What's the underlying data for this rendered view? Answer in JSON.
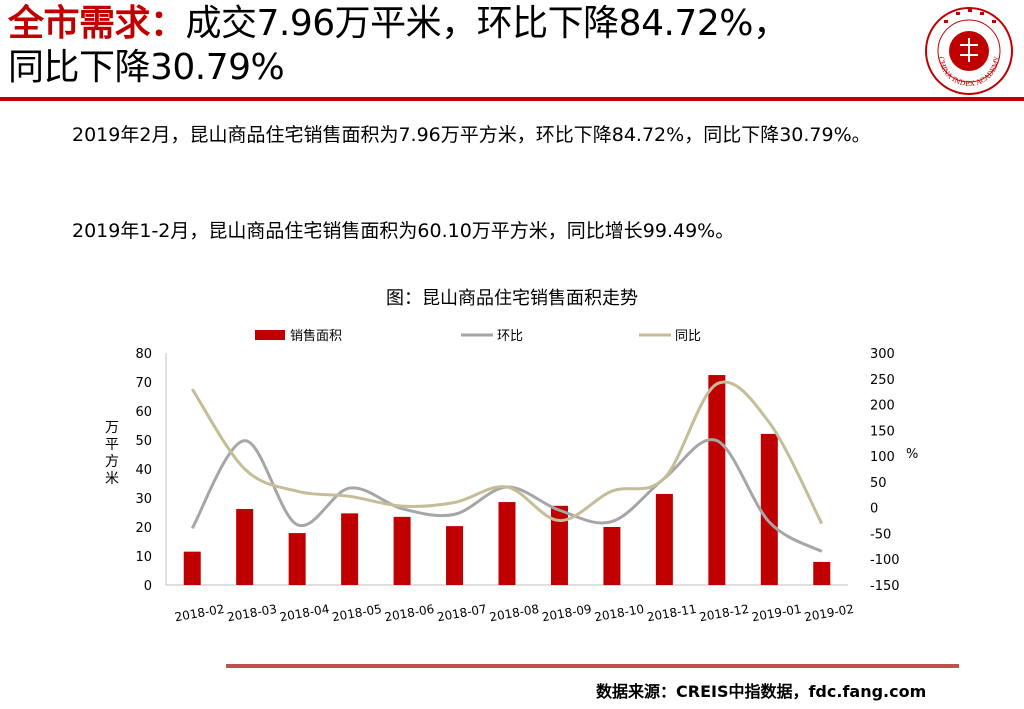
{
  "headline": {
    "red": "全市需求：",
    "rest_line1": "成交7.96万平米，环比下降84.72%，",
    "line2": "同比下降30.79%"
  },
  "logo": {
    "seal_text": "CHINA INDEX ACADEMY",
    "center_text": "中 指",
    "accent_color": "#c00000"
  },
  "paragraphs": {
    "p1": "2019年2月，昆山商品住宅销售面积为7.96万平方米，环比下降84.72%，同比下降30.79%。",
    "p2": "2019年1-2月，昆山商品住宅销售面积为60.10万平方米，同比增长99.49%。"
  },
  "chart_title": "图：昆山商品住宅销售面积走势",
  "source": "数据来源：CREIS中指数据，fdc.fang.com",
  "chart_data": {
    "type": "bar",
    "categories": [
      "2018-02",
      "2018-03",
      "2018-04",
      "2018-05",
      "2018-06",
      "2018-07",
      "2018-08",
      "2018-09",
      "2018-10",
      "2018-11",
      "2018-12",
      "2019-01",
      "2019-02"
    ],
    "ylabel_left": "万平方米",
    "ylabel_right": "%",
    "ylim_left": [
      0,
      80
    ],
    "yticks_left": [
      0,
      10,
      20,
      30,
      40,
      50,
      60,
      70,
      80
    ],
    "ylim_right": [
      -150,
      300
    ],
    "yticks_right": [
      -150,
      -100,
      -50,
      0,
      50,
      100,
      150,
      200,
      250,
      300
    ],
    "legend_position": "top",
    "series": [
      {
        "name": "销售面积",
        "kind": "bar",
        "axis": "left",
        "color": "#c00000",
        "values": [
          11.5,
          26.2,
          17.9,
          24.7,
          23.5,
          20.3,
          28.6,
          27.3,
          20.0,
          31.4,
          72.4,
          52.1,
          7.96
        ]
      },
      {
        "name": "环比",
        "kind": "line",
        "axis": "right",
        "color": "#a6a6a6",
        "values": [
          -40,
          130,
          -33,
          38,
          -2,
          -13,
          40,
          -5,
          -27,
          57,
          130,
          -28,
          -85
        ]
      },
      {
        "name": "同比",
        "kind": "line",
        "axis": "right",
        "color": "#c4bd97",
        "values": [
          230,
          75,
          32,
          22,
          3,
          10,
          40,
          -25,
          32,
          57,
          240,
          165,
          -31
        ]
      }
    ]
  }
}
